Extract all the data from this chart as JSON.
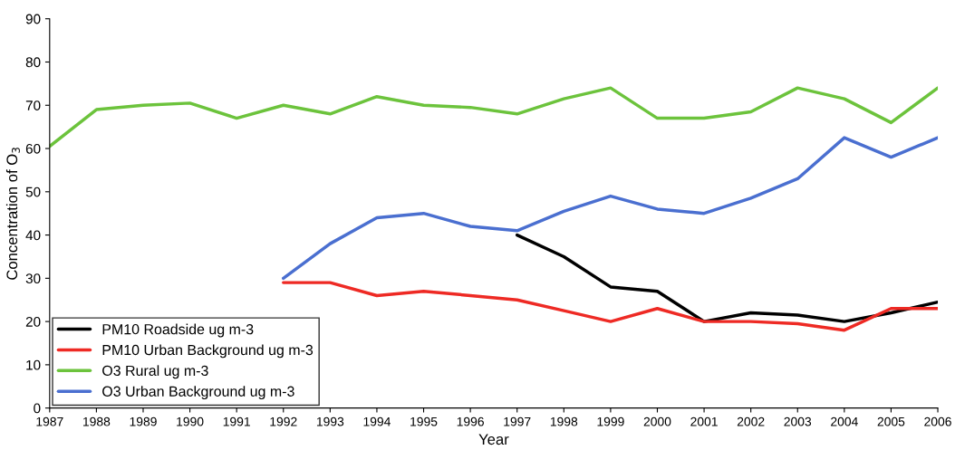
{
  "chart_data": {
    "type": "line",
    "xlabel": "Year",
    "ylabel": "Concentration of O$_{3}$",
    "categories": [
      "1987",
      "1988",
      "1989",
      "1990",
      "1991",
      "1992",
      "1993",
      "1994",
      "1995",
      "1996",
      "1997",
      "1998",
      "1999",
      "2000",
      "2001",
      "2002",
      "2003",
      "2004",
      "2005",
      "2006"
    ],
    "series": [
      {
        "name": "PM10 Roadside ug m-3",
        "color": "#000000",
        "values": [
          null,
          null,
          null,
          null,
          null,
          null,
          null,
          null,
          null,
          null,
          40,
          35,
          28,
          27,
          20,
          22,
          21.5,
          20,
          22,
          24.5
        ]
      },
      {
        "name": "PM10 Urban Background ug m-3",
        "color": "#ee2a24",
        "values": [
          null,
          null,
          null,
          null,
          null,
          29,
          29,
          26,
          27,
          26,
          25,
          22.5,
          20,
          23,
          20,
          20,
          19.5,
          18,
          23,
          23
        ]
      },
      {
        "name": "O3 Rural ug m-3",
        "color": "#6cc33c",
        "values": [
          60.5,
          69,
          70,
          70.5,
          67,
          70,
          68,
          72,
          70,
          69.5,
          68,
          71.5,
          74,
          67,
          67,
          68.5,
          74,
          71.5,
          66,
          74
        ]
      },
      {
        "name": "O3 Urban Background ug m-3",
        "color": "#4a6fd0",
        "values": [
          null,
          null,
          null,
          null,
          null,
          30,
          38,
          44,
          45,
          42,
          41,
          45.5,
          49,
          46,
          45,
          48.5,
          53,
          62.5,
          58,
          62.5
        ]
      }
    ],
    "ylim": [
      0,
      90
    ],
    "yticks": [
      0,
      10,
      20,
      30,
      40,
      50,
      60,
      70,
      80,
      90
    ],
    "grid": false,
    "legend": "bottom left",
    "marker": "none",
    "line_style": "solid"
  }
}
